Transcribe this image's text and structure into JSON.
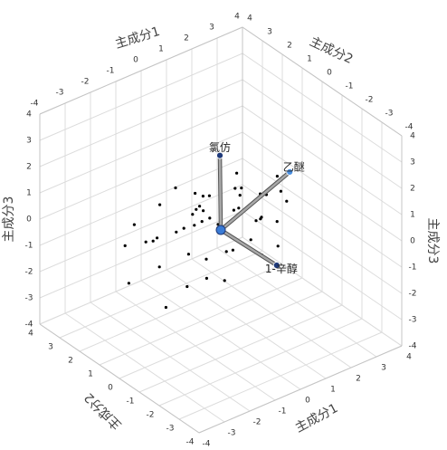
{
  "chart_data": {
    "type": "scatter3d",
    "axis_titles": [
      "主成分1",
      "主成分2",
      "主成分3"
    ],
    "xlim": [
      -4,
      4
    ],
    "ylim": [
      -4,
      4
    ],
    "zlim": [
      -4,
      4
    ],
    "xticks": [
      -4,
      -3,
      -2,
      -1,
      0,
      1,
      2,
      3,
      4
    ],
    "yticks": [
      -4,
      -3,
      -2,
      -1,
      0,
      1,
      2,
      3,
      4
    ],
    "zticks": [
      -4,
      -3,
      -2,
      -1,
      0,
      1,
      2,
      3,
      4
    ],
    "grid": true,
    "points": {
      "color": "#000000",
      "x": [
        -3.0,
        -2.6,
        -2.4,
        -2.2,
        -2.0,
        -1.8,
        -1.7,
        -1.5,
        -1.4,
        -1.3,
        -1.2,
        -1.0,
        -0.9,
        -0.8,
        -0.7,
        -0.6,
        -0.5,
        -0.4,
        -0.3,
        -0.2,
        -0.1,
        0.0,
        0.1,
        0.2,
        0.3,
        0.4,
        0.5,
        0.6,
        0.7,
        0.8,
        0.9,
        1.0,
        1.1,
        1.2,
        1.3,
        1.4,
        1.5,
        1.6,
        1.7,
        1.8,
        1.9,
        2.0,
        -1.1,
        -0.6,
        0.4,
        1.0,
        -2.8,
        -1.9,
        0.6,
        1.5
      ],
      "y": [
        0.8,
        1.5,
        -0.3,
        0.4,
        1.8,
        -0.6,
        0.9,
        -1.2,
        1.3,
        0.2,
        -0.8,
        1.0,
        -0.2,
        0.6,
        -1.5,
        0.3,
        1.6,
        -0.7,
        0.5,
        -0.1,
        1.2,
        -0.9,
        0.7,
        -1.8,
        0.1,
        1.4,
        -0.4,
        0.9,
        -1.1,
        0.3,
        1.7,
        -0.5,
        0.6,
        -1.3,
        1.0,
        -0.2,
        0.4,
        -0.8,
        1.2,
        0.0,
        -0.6,
        0.5,
        2.0,
        -1.9,
        1.8,
        -1.6,
        0.2,
        -1.0,
        2.0,
        -1.4
      ],
      "z": [
        -1.2,
        -0.3,
        -1.8,
        0.4,
        0.1,
        -1.1,
        1.2,
        -0.6,
        -1.5,
        0.5,
        -0.2,
        1.5,
        0.8,
        -0.9,
        0.3,
        1.0,
        -0.7,
        -1.4,
        0.6,
        0.2,
        -0.4,
        1.3,
        0.9,
        -0.1,
        -1.0,
        0.4,
        1.6,
        -0.5,
        0.7,
        1.1,
        -0.8,
        0.2,
        1.4,
        0.5,
        -0.3,
        0.9,
        -1.2,
        1.8,
        0.0,
        0.6,
        1.0,
        -0.6,
        -1.0,
        0.7,
        0.3,
        -0.2,
        0.6,
        1.9,
        -0.5,
        1.2
      ]
    },
    "loadings": [
      {
        "name": "氯仿",
        "x": 0.2,
        "y": 0.3,
        "z": 2.6,
        "color": "#1f3a7a"
      },
      {
        "name": "乙醚",
        "x": 2.8,
        "y": 0.1,
        "z": 1.0,
        "color": "#4a8fe0"
      },
      {
        "name": "1-辛醇",
        "x": 1.5,
        "y": -0.9,
        "z": -1.5,
        "color": "#1f3a7a"
      }
    ]
  }
}
